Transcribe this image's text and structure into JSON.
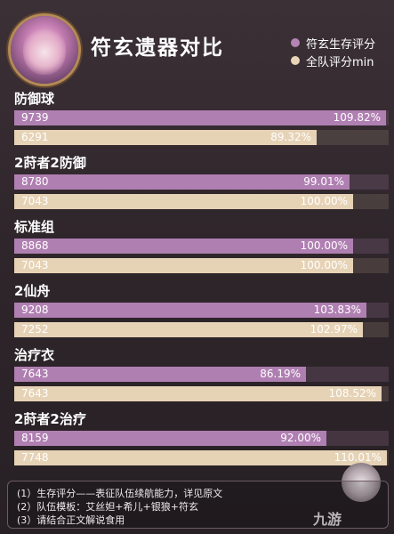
{
  "header": {
    "title": "符玄遗器对比",
    "legend": [
      {
        "label": "符玄生存评分",
        "color": "#b484b4"
      },
      {
        "label": "全队评分min",
        "color": "#e9d4b8"
      }
    ]
  },
  "chart_data": {
    "type": "bar",
    "orientation": "horizontal",
    "title": "符玄遗器对比",
    "categories": [
      "防御球",
      "2莳者2防御",
      "标准组",
      "2仙舟",
      "治疗衣",
      "2莳者2治疗"
    ],
    "series": [
      {
        "name": "符玄生存评分",
        "color": "#b484b4",
        "scores": [
          "9739",
          "8780",
          "8868",
          "9208",
          "7643",
          "8159"
        ],
        "values": [
          109.82,
          99.01,
          100.0,
          103.83,
          86.19,
          92.0
        ],
        "value_labels": [
          "109.82%",
          "99.01%",
          "100.00%",
          "103.83%",
          "86.19%",
          "92.00%"
        ]
      },
      {
        "name": "全队评分min",
        "color": "#e9d4b8",
        "scores": [
          "6291",
          "7043",
          "7043",
          "7252",
          "7643",
          "7748"
        ],
        "values": [
          89.32,
          100.0,
          100.0,
          102.97,
          108.52,
          110.01
        ],
        "value_labels": [
          "89.32%",
          "100.00%",
          "100.00%",
          "102.97%",
          "108.52%",
          "110.01%"
        ]
      }
    ],
    "xlim": [
      0,
      110.5
    ],
    "legend": "top-right",
    "grid": false
  },
  "notes": [
    "(1）生存评分——表征队伍续航能力，详见原文",
    "(2）队伍模板：艾丝妲+希儿+银狼+符玄",
    "(3）请结合正文解说食用"
  ],
  "watermark": "九游"
}
